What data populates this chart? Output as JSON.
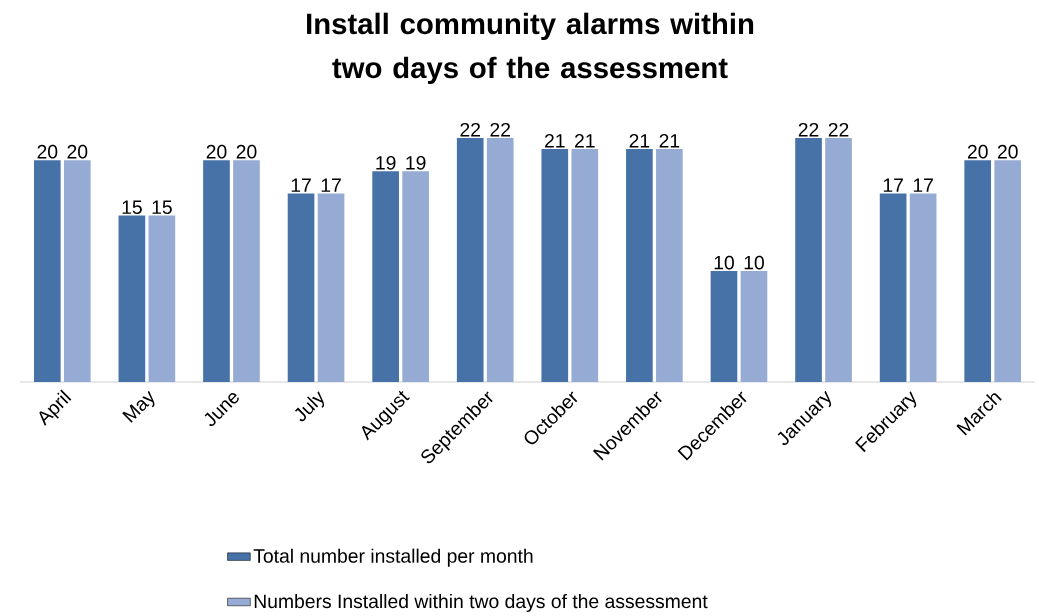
{
  "chart_data": {
    "type": "bar",
    "title": "Install community alarms within two days of the assessment",
    "categories": [
      "April",
      "May",
      "June",
      "July",
      "August",
      "September",
      "October",
      "November",
      "December",
      "January",
      "February",
      "March"
    ],
    "series": [
      {
        "name": "Total number installed per month",
        "color": "#4672a8",
        "values": [
          20,
          15,
          20,
          17,
          19,
          22,
          21,
          21,
          10,
          22,
          17,
          20
        ]
      },
      {
        "name": "Numbers Installed within two days of the assessment",
        "color": "#95abd3",
        "values": [
          20,
          15,
          20,
          17,
          19,
          22,
          21,
          21,
          10,
          22,
          17,
          20
        ]
      }
    ],
    "data_labels": true,
    "legend": "bottom"
  }
}
